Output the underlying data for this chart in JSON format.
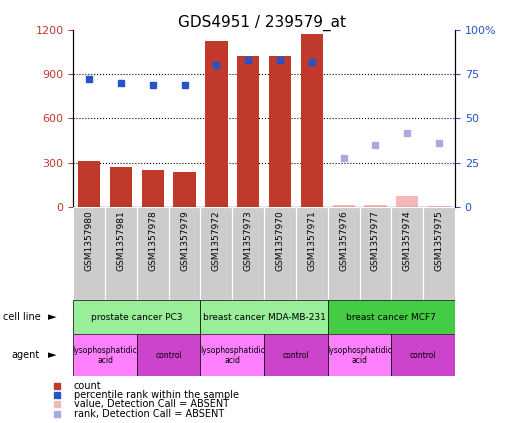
{
  "title": "GDS4951 / 239579_at",
  "samples": [
    "GSM1357980",
    "GSM1357981",
    "GSM1357978",
    "GSM1357979",
    "GSM1357972",
    "GSM1357973",
    "GSM1357970",
    "GSM1357971",
    "GSM1357976",
    "GSM1357977",
    "GSM1357974",
    "GSM1357975"
  ],
  "counts": [
    310,
    270,
    255,
    235,
    1120,
    1020,
    1020,
    1170,
    15,
    15,
    75,
    10
  ],
  "percentile_ranks": [
    72,
    70,
    69,
    69,
    80,
    83,
    83,
    82,
    null,
    null,
    null,
    null
  ],
  "absent_ranks": [
    null,
    null,
    null,
    null,
    null,
    null,
    null,
    null,
    28,
    35,
    42,
    36
  ],
  "detection_absent": [
    false,
    false,
    false,
    false,
    false,
    false,
    false,
    false,
    true,
    true,
    true,
    true
  ],
  "bar_color": "#C0392B",
  "bar_color_absent": "#F5B8B8",
  "rank_color": "#2653C7",
  "rank_color_absent": "#AAAADD",
  "cell_lines": [
    {
      "label": "prostate cancer PC3",
      "start": 0,
      "end": 4,
      "color": "#99EE99"
    },
    {
      "label": "breast cancer MDA-MB-231",
      "start": 4,
      "end": 8,
      "color": "#99EE99"
    },
    {
      "label": "breast cancer MCF7",
      "start": 8,
      "end": 12,
      "color": "#44CC44"
    }
  ],
  "agents": [
    {
      "label": "lysophosphatidic\nacid",
      "start": 0,
      "end": 2,
      "color": "#FF80FF"
    },
    {
      "label": "control",
      "start": 2,
      "end": 4,
      "color": "#CC44CC"
    },
    {
      "label": "lysophosphatidic\nacid",
      "start": 4,
      "end": 6,
      "color": "#FF80FF"
    },
    {
      "label": "control",
      "start": 6,
      "end": 8,
      "color": "#CC44CC"
    },
    {
      "label": "lysophosphatidic\nacid",
      "start": 8,
      "end": 10,
      "color": "#FF80FF"
    },
    {
      "label": "control",
      "start": 10,
      "end": 12,
      "color": "#CC44CC"
    }
  ],
  "ylim_left": [
    0,
    1200
  ],
  "ylim_right": [
    0,
    100
  ],
  "yticks_left": [
    0,
    300,
    600,
    900,
    1200
  ],
  "yticks_right": [
    0,
    25,
    50,
    75,
    100
  ],
  "background_color": "#FFFFFF",
  "xtick_bg_color": "#CCCCCC"
}
